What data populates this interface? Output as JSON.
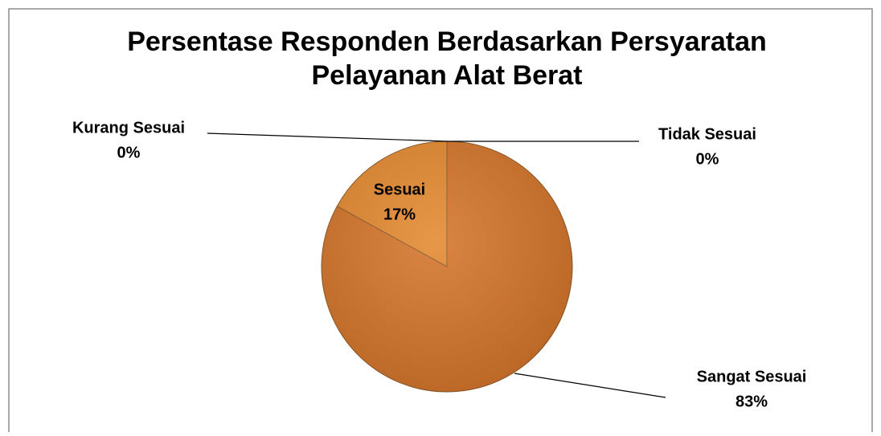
{
  "chart_data": {
    "type": "pie",
    "title": "Persentase Responden Berdasarkan Persyaratan Pelayanan Alat Berat",
    "categories": [
      "Sangat Sesuai",
      "Sesuai",
      "Kurang Sesuai",
      "Tidak Sesuai"
    ],
    "values": [
      83,
      17,
      0,
      0
    ],
    "value_labels": [
      "83%",
      "17%",
      "0%",
      "0%"
    ],
    "colors": [
      "#d4742a",
      "#e4892f",
      "#d98030",
      "#d98030"
    ]
  }
}
